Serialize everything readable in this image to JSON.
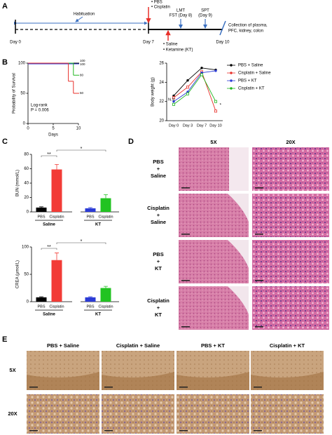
{
  "panel_labels": [
    "A",
    "B",
    "C",
    "D",
    "E"
  ],
  "timeline": {
    "habituation": "Habituation",
    "days": [
      "Day 0",
      "Day 7",
      "Day 10"
    ],
    "treatment1": [
      "• PBS",
      "• Cisplatin"
    ],
    "treatment2": [
      "• Saline",
      "• Ketamine (KT)"
    ],
    "test1": [
      "LMT",
      "FST (Day 8)"
    ],
    "test2": [
      "SPT",
      "(Day 9)"
    ],
    "collection": [
      "Collection of plasma,",
      "PFC, kidney, colon"
    ]
  },
  "histology": {
    "columns": [
      "5X",
      "20X"
    ],
    "rows": [
      [
        "PBS",
        "+",
        "Saline"
      ],
      [
        "Cisplatin",
        "+",
        "Saline"
      ],
      [
        "PBS",
        "+",
        "KT"
      ],
      [
        "Cisplatin",
        "+",
        "KT"
      ]
    ]
  },
  "ihc": {
    "columns": [
      "PBS + Saline",
      "Cisplatin + Saline",
      "PBS + KT",
      "Cisplatin + KT"
    ],
    "rows": [
      "5X",
      "20X"
    ]
  },
  "chart_data": [
    {
      "type": "step",
      "x_label": "Days",
      "y_label": "Probability of Survival",
      "x": [
        0,
        8,
        9,
        10
      ],
      "xlim": [
        0,
        10
      ],
      "xticks": [
        0,
        5,
        10
      ],
      "ylim": [
        0,
        100
      ],
      "yticks": [
        0,
        50,
        100
      ],
      "annotations": [
        "Log-rank",
        "P = 0.006"
      ],
      "series": [
        {
          "color": "#000000",
          "values": [
            100,
            100,
            100,
            100
          ]
        },
        {
          "color": "#2b3bd6",
          "values": [
            100,
            100,
            100,
            100
          ]
        },
        {
          "color": "#1fb51f",
          "values": [
            100,
            100,
            80,
            80
          ]
        },
        {
          "color": "#e8302a",
          "values": [
            100,
            70,
            50,
            50
          ]
        }
      ]
    },
    {
      "type": "line",
      "y_label": "Body weight (g)",
      "categories": [
        "Day 0",
        "Day 3",
        "Day 7",
        "Day 10"
      ],
      "ylim": [
        20,
        26
      ],
      "yticks": [
        20,
        22,
        24,
        26
      ],
      "annotations": [
        "N.S",
        "*"
      ],
      "series": [
        {
          "name": "PBS + Saline",
          "color": "#000000",
          "values": [
            22.6,
            24.2,
            25.5,
            25.3
          ]
        },
        {
          "name": "Cisplatin + Saline",
          "color": "#e8302a",
          "values": [
            22.4,
            23.5,
            25.1,
            21.0
          ]
        },
        {
          "name": "PBS + KT",
          "color": "#2b3bd6",
          "values": [
            22.0,
            23.0,
            25.0,
            25.2
          ]
        },
        {
          "name": "Cisplatin + KT",
          "color": "#1fb51f",
          "values": [
            21.7,
            22.8,
            24.8,
            22.0
          ]
        }
      ]
    },
    {
      "type": "bar",
      "y_label": "BUN (mmol/L)",
      "categories": [
        "PBS",
        "Cisplatin",
        "PBS",
        "Cisplatin"
      ],
      "groups": [
        "Saline",
        "KT"
      ],
      "values": [
        6,
        59,
        5,
        19
      ],
      "errors": [
        1,
        7,
        1,
        5
      ],
      "colors": [
        "#000000",
        "#f23b36",
        "#2b3bd6",
        "#22c322"
      ],
      "ylim": [
        0,
        80
      ],
      "yticks": [
        0,
        20,
        40,
        60,
        80
      ],
      "annotations": [
        "**",
        "*"
      ]
    },
    {
      "type": "bar",
      "y_label": "CREA (μmol/L)",
      "categories": [
        "PBS",
        "Cisplatin",
        "PBS",
        "Cisplatin"
      ],
      "groups": [
        "Saline",
        "KT"
      ],
      "values": [
        8,
        76,
        8,
        25
      ],
      "errors": [
        1,
        13,
        1,
        3
      ],
      "colors": [
        "#000000",
        "#f23b36",
        "#2b3bd6",
        "#22c322"
      ],
      "ylim": [
        0,
        100
      ],
      "yticks": [
        0,
        50,
        100
      ],
      "annotations": [
        "**",
        "*"
      ]
    }
  ]
}
